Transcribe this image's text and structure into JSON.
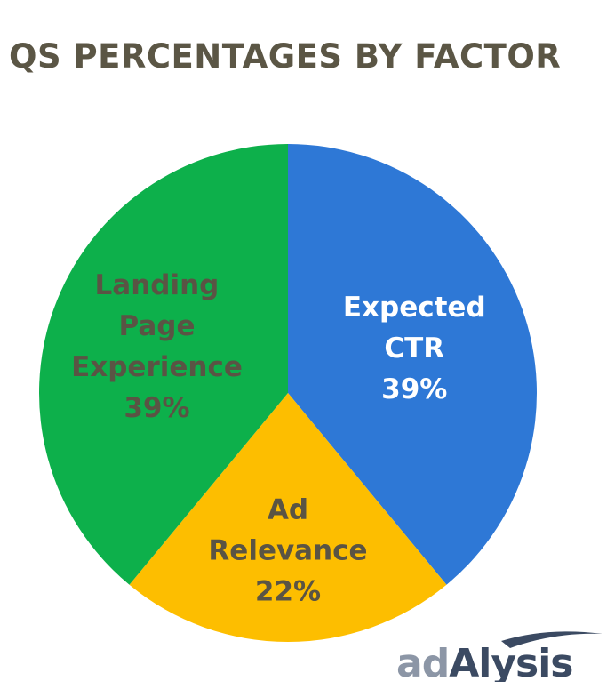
{
  "chart_data": {
    "type": "pie",
    "title": "QS PERCENTAGES BY FACTOR",
    "start_angle_deg": 0,
    "direction": "clockwise",
    "slices": [
      {
        "label_lines": [
          "Expected",
          "CTR"
        ],
        "value_label": "39%",
        "value": 39,
        "color": "#2e78d6",
        "label_color": "#ffffff"
      },
      {
        "label_lines": [
          "Ad",
          "Relevance"
        ],
        "value_label": "22%",
        "value": 22,
        "color": "#fdbe00",
        "label_color": "#5a5444"
      },
      {
        "label_lines": [
          "Landing",
          "Page",
          "Experience"
        ],
        "value_label": "39%",
        "value": 39,
        "color": "#0db04b",
        "label_color": "#5a5444"
      }
    ],
    "legend": "none",
    "grid": false
  },
  "logo": {
    "part1": "ad",
    "part2": "Alysis",
    "color_dark": "#3b4a62",
    "color_light": "#8c96a6"
  }
}
